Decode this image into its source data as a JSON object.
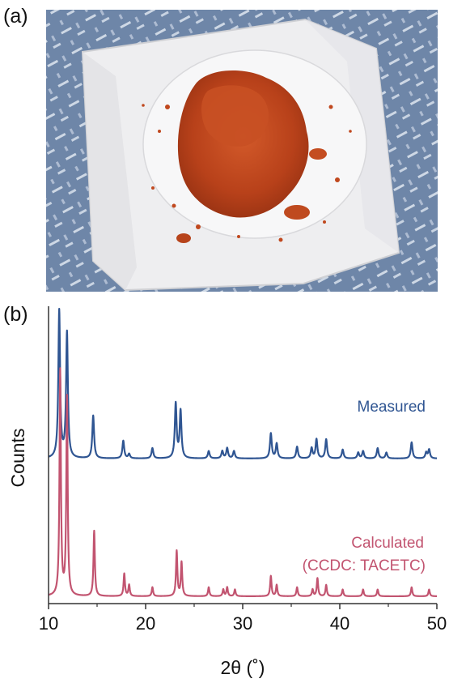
{
  "panels": {
    "a_label": "(a)",
    "b_label": "(b)"
  },
  "photo": {
    "subject": "orange-red powder on white paper disc",
    "powder_color": "#c2451c",
    "background_color": "#6e86a8"
  },
  "chart_data": {
    "type": "line",
    "title": "",
    "xlabel": "2θ (˚)",
    "ylabel": "Counts",
    "xlim": [
      10,
      50
    ],
    "xticks": [
      10,
      20,
      30,
      40,
      50
    ],
    "grid": false,
    "series": [
      {
        "name": "Measured",
        "color": "#2f5592",
        "peaks": [
          [
            11.1,
            1.0
          ],
          [
            11.9,
            0.85
          ],
          [
            14.6,
            0.29
          ],
          [
            17.7,
            0.12
          ],
          [
            18.3,
            0.03
          ],
          [
            20.7,
            0.07
          ],
          [
            23.1,
            0.37
          ],
          [
            23.6,
            0.32
          ],
          [
            26.5,
            0.05
          ],
          [
            27.9,
            0.05
          ],
          [
            28.4,
            0.07
          ],
          [
            29.1,
            0.05
          ],
          [
            32.9,
            0.17
          ],
          [
            33.5,
            0.1
          ],
          [
            35.6,
            0.08
          ],
          [
            37.1,
            0.07
          ],
          [
            37.6,
            0.13
          ],
          [
            38.6,
            0.13
          ],
          [
            40.3,
            0.06
          ],
          [
            41.9,
            0.04
          ],
          [
            42.4,
            0.05
          ],
          [
            43.9,
            0.07
          ],
          [
            44.8,
            0.04
          ],
          [
            47.4,
            0.11
          ],
          [
            48.9,
            0.04
          ],
          [
            49.2,
            0.06
          ]
        ]
      },
      {
        "name": "Calculated",
        "sub_label": "(CCDC: TACETC)",
        "color": "#c25470",
        "peaks": [
          [
            11.2,
            1.0
          ],
          [
            11.9,
            0.88
          ],
          [
            14.7,
            0.29
          ],
          [
            17.8,
            0.1
          ],
          [
            18.3,
            0.05
          ],
          [
            20.7,
            0.04
          ],
          [
            23.2,
            0.2
          ],
          [
            23.7,
            0.15
          ],
          [
            26.5,
            0.04
          ],
          [
            28.0,
            0.03
          ],
          [
            28.4,
            0.04
          ],
          [
            29.2,
            0.03
          ],
          [
            32.9,
            0.09
          ],
          [
            33.5,
            0.05
          ],
          [
            35.6,
            0.04
          ],
          [
            37.2,
            0.03
          ],
          [
            37.7,
            0.08
          ],
          [
            38.6,
            0.05
          ],
          [
            40.3,
            0.03
          ],
          [
            42.4,
            0.03
          ],
          [
            43.9,
            0.03
          ],
          [
            47.4,
            0.04
          ],
          [
            49.2,
            0.03
          ]
        ]
      }
    ]
  }
}
